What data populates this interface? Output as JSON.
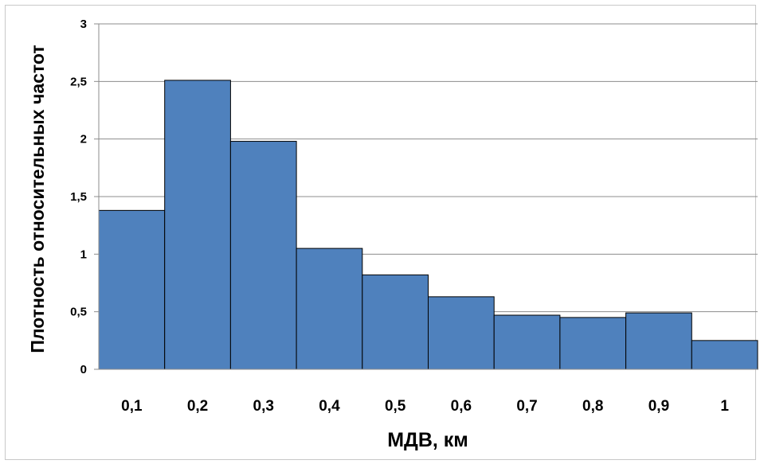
{
  "chart_data": {
    "type": "bar",
    "categories": [
      "0,1",
      "0,2",
      "0,3",
      "0,4",
      "0,5",
      "0,6",
      "0,7",
      "0,8",
      "0,9",
      "1"
    ],
    "values": [
      1.38,
      2.51,
      1.98,
      1.05,
      0.82,
      0.63,
      0.47,
      0.45,
      0.49,
      0.25
    ],
    "title": "",
    "xlabel": "МДВ, км",
    "ylabel": "Плотность относительных частот",
    "ylim": [
      0,
      3
    ],
    "yticks": [
      0,
      0.5,
      1,
      1.5,
      2,
      2.5,
      3
    ],
    "ytick_labels": [
      "0",
      "0,5",
      "1",
      "1,5",
      "2",
      "2,5",
      "3"
    ],
    "grid": true,
    "legend": "none",
    "colors": {
      "bar_fill": "#4f81bd",
      "bar_stroke": "#000000",
      "grid": "#8c8c8c",
      "axis": "#8c8c8c"
    }
  }
}
